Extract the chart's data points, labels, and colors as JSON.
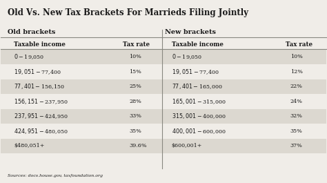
{
  "title": "Old Vs. New Tax Brackets For Marrieds Filing Jointly",
  "old_header": "Old brackets",
  "new_header": "New brackets",
  "col_headers": [
    "Taxable income",
    "Tax rate",
    "Taxable income",
    "Tax rate"
  ],
  "old_rows": [
    [
      "$0-$19,050",
      "10%"
    ],
    [
      "$19,051-$77,400",
      "15%"
    ],
    [
      "$77,401-$156,150",
      "25%"
    ],
    [
      "$156,151-$237,950",
      "28%"
    ],
    [
      "$237,951-$424,950",
      "33%"
    ],
    [
      "$424,951-$480,050",
      "35%"
    ],
    [
      "$480,051+",
      "39.6%"
    ]
  ],
  "new_rows": [
    [
      "$0-$19,050",
      "10%"
    ],
    [
      "$19,051-$77,400",
      "12%"
    ],
    [
      "$77,401-$165,000",
      "22%"
    ],
    [
      "$165,001-$315,000",
      "24%"
    ],
    [
      "$315,001-$400,000",
      "32%"
    ],
    [
      "$400,001-$600,000",
      "35%"
    ],
    [
      "$600,001+",
      "37%"
    ]
  ],
  "source": "Sources: docs.house.gov, taxfoundation.org",
  "bg_color": "#f0ede8",
  "row_alt_color": "#dcd8d0",
  "title_color": "#1a1a1a",
  "text_color": "#1a1a1a",
  "divider_color": "#888880",
  "title_fontsize": 8.5,
  "sec_hdr_fontsize": 7.0,
  "col_hdr_fontsize": 6.2,
  "data_fontsize": 5.8,
  "source_fontsize": 4.5
}
